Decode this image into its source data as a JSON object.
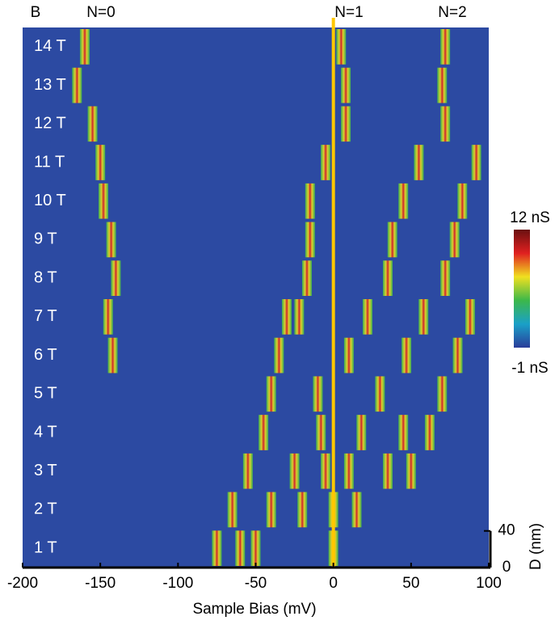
{
  "chart_data": {
    "type": "spectral-map",
    "xlabel": "Sample Bias (mV)",
    "xlim": [
      -200,
      100
    ],
    "xticks": [
      -200,
      -150,
      -100,
      -50,
      0,
      50,
      100
    ],
    "field_header": "B",
    "level_labels": [
      "N=0",
      "N=1",
      "N=2"
    ],
    "fields": [
      "14 T",
      "13 T",
      "12 T",
      "11 T",
      "10 T",
      "9 T",
      "8 T",
      "7 T",
      "6 T",
      "5 T",
      "4 T",
      "3 T",
      "2 T",
      "1 T"
    ],
    "peaks": [
      [
        -160,
        5,
        72
      ],
      [
        -165,
        8,
        70
      ],
      [
        -155,
        8,
        72
      ],
      [
        -150,
        -5,
        55,
        92
      ],
      [
        -148,
        -15,
        45,
        83
      ],
      [
        -143,
        -15,
        38,
        78
      ],
      [
        -140,
        -17,
        35,
        72
      ],
      [
        -145,
        -30,
        -22,
        22,
        58,
        88
      ],
      [
        -142,
        -35,
        10,
        47,
        80
      ],
      [
        -40,
        -10,
        30,
        70
      ],
      [
        -45,
        -8,
        18,
        45,
        62
      ],
      [
        -55,
        -25,
        -5,
        10,
        35,
        50
      ],
      [
        -65,
        -40,
        -20,
        0,
        15
      ],
      [
        -75,
        -60,
        -50,
        0
      ]
    ],
    "marker_x": 0,
    "marker_color": "#ffc800",
    "background_color": "#2c4aa2",
    "colormap": [
      "#2a3c9a",
      "#1aa0c8",
      "#3cb84a",
      "#f0e020",
      "#e02020",
      "#6a1010"
    ],
    "colorbar_labels": [
      "12 nS",
      "-1 nS"
    ],
    "scale_label": "D (nm)",
    "scale_ticks": [
      0,
      40
    ]
  }
}
